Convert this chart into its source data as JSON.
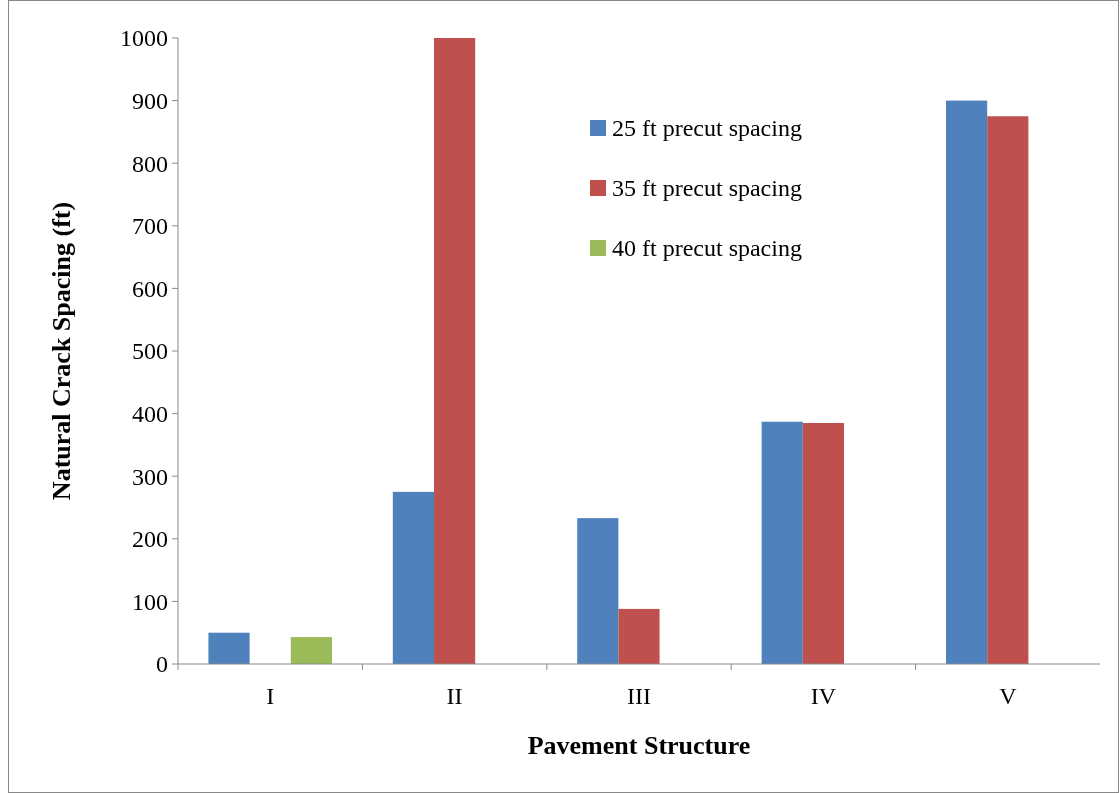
{
  "chart_data": {
    "type": "bar",
    "xlabel": "Pavement Structure",
    "ylabel": "Natural Crack Spacing (ft)",
    "categories": [
      "I",
      "II",
      "III",
      "IV",
      "V"
    ],
    "series": [
      {
        "name": "25 ft precut spacing",
        "color": "#4f81bd",
        "values": [
          50,
          275,
          233,
          387,
          900
        ]
      },
      {
        "name": "35 ft precut spacing",
        "color": "#c0504d",
        "values": [
          null,
          1000,
          88,
          385,
          875
        ]
      },
      {
        "name": "40 ft precut spacing",
        "color": "#9bbb59",
        "values": [
          43,
          null,
          null,
          null,
          null
        ]
      }
    ],
    "ylim": [
      0,
      1000
    ],
    "yticks": [
      0,
      100,
      200,
      300,
      400,
      500,
      600,
      700,
      800,
      900,
      1000
    ],
    "grid": false,
    "legend": "top right"
  }
}
